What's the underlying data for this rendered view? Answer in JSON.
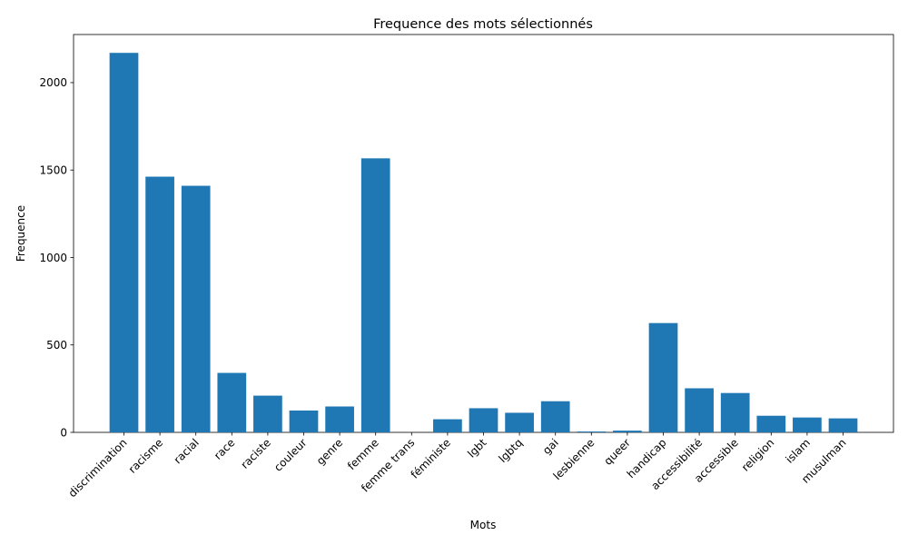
{
  "chart_data": {
    "type": "bar",
    "title": "Frequence des mots sélectionnés",
    "xlabel": "Mots",
    "ylabel": "Frequence",
    "categories": [
      "discrimination",
      "racisme",
      "racial",
      "race",
      "raciste",
      "couleur",
      "genre",
      "femme",
      "femme trans",
      "féministe",
      "lgbt",
      "lgbtq",
      "gai",
      "lesbienne",
      "queer",
      "handicap",
      "accessibilité",
      "accessible",
      "religion",
      "islam",
      "musulman"
    ],
    "values": [
      2170,
      1462,
      1410,
      340,
      210,
      125,
      148,
      1567,
      0,
      75,
      138,
      112,
      178,
      5,
      10,
      625,
      252,
      225,
      95,
      85,
      80
    ],
    "ylim": [
      0,
      2275
    ],
    "yticks": [
      0,
      500,
      1000,
      1500,
      2000
    ],
    "bar_color": "#1f77b4",
    "grid": false,
    "legend": "none"
  }
}
